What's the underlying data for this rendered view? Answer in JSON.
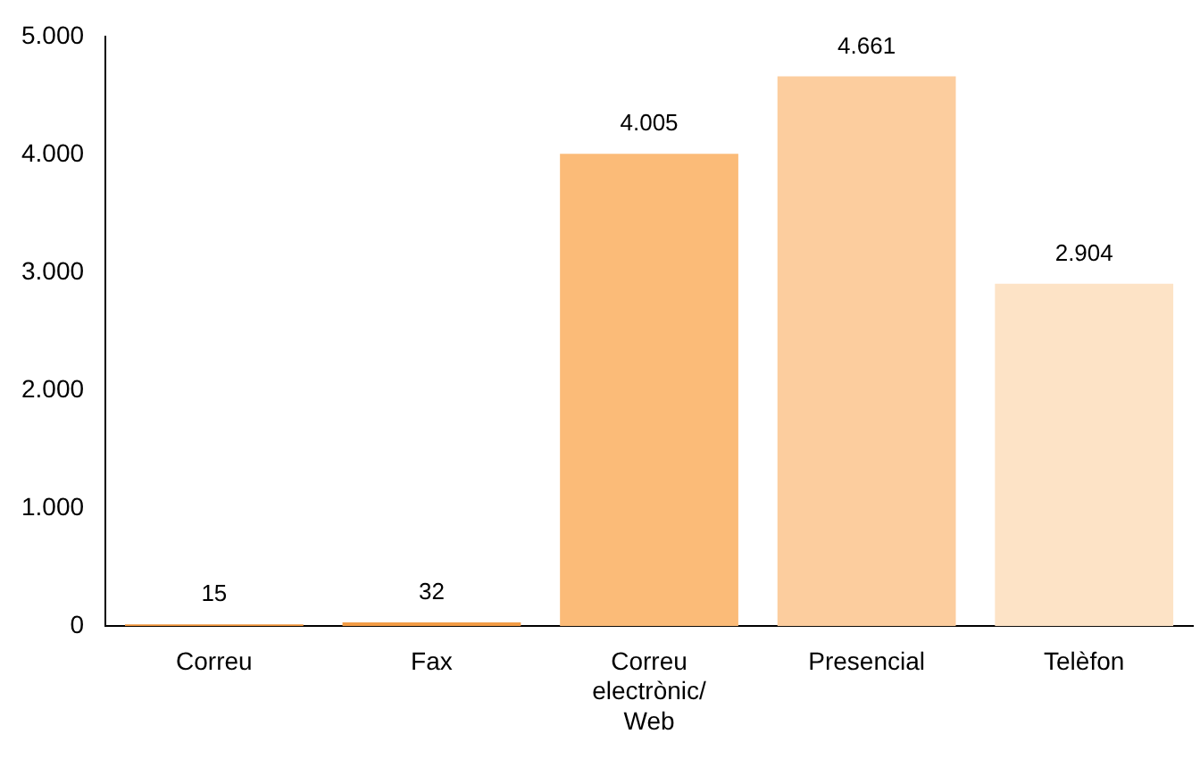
{
  "chart_data": {
    "type": "bar",
    "categories": [
      "Correu",
      "Fax",
      "Correu electrònic/ Web",
      "Presencial",
      "Telèfon"
    ],
    "values": [
      15,
      32,
      4005,
      4661,
      2904
    ],
    "colors": [
      "#f0943a",
      "#f39c45",
      "#fbbb78",
      "#fccd9e",
      "#fde3c6"
    ],
    "value_labels": [
      "15",
      "32",
      "4.005",
      "4.661",
      "2.904"
    ],
    "ylim": [
      0,
      5000
    ],
    "yticks": [
      {
        "value": 0,
        "label": "0"
      },
      {
        "value": 1000,
        "label": "1.000"
      },
      {
        "value": 2000,
        "label": "2.000"
      },
      {
        "value": 3000,
        "label": "3.000"
      },
      {
        "value": 4000,
        "label": "4.000"
      },
      {
        "value": 5000,
        "label": "5.000"
      }
    ],
    "grid": false,
    "legend": false
  }
}
